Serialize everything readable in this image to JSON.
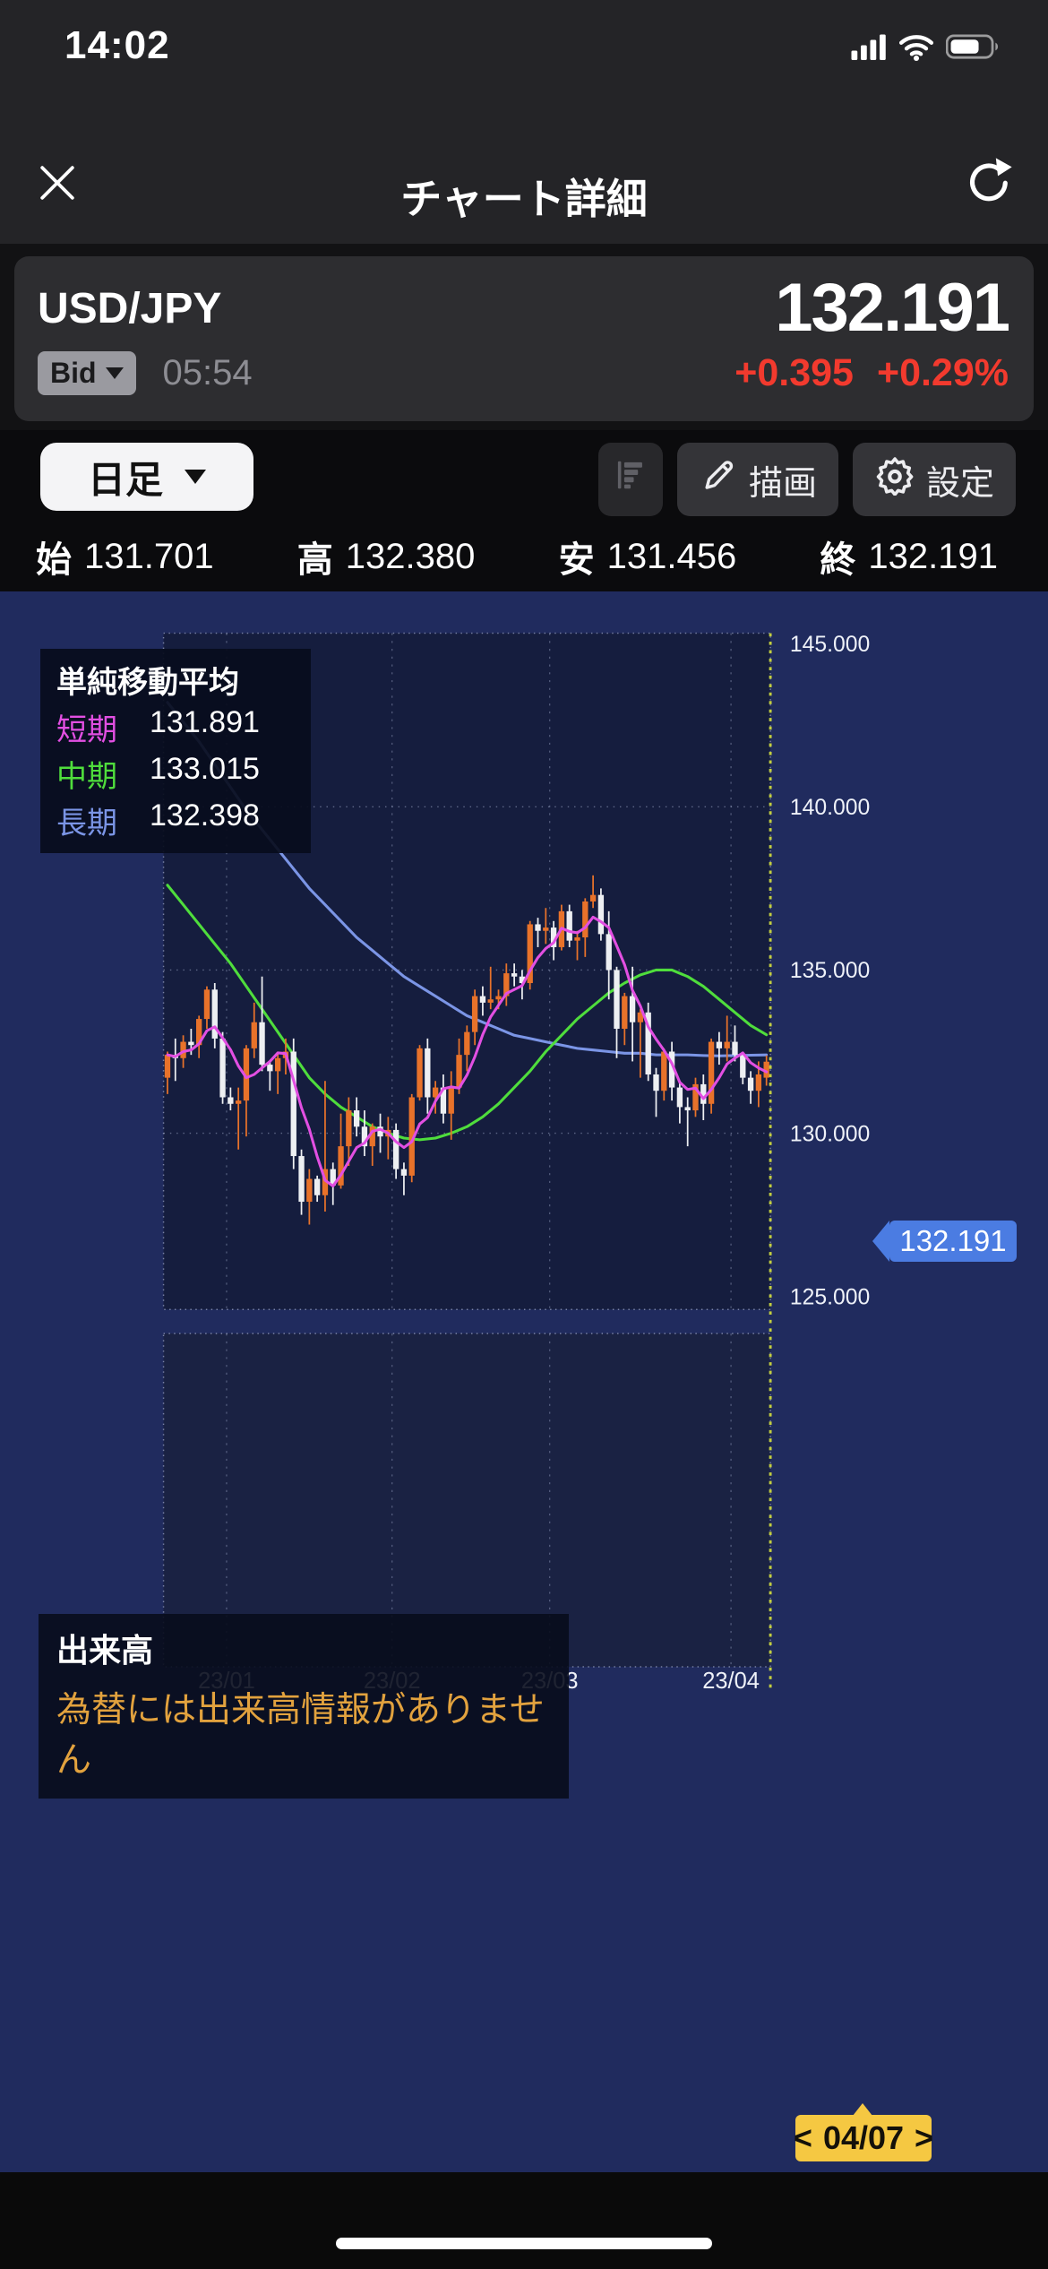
{
  "status_bar": {
    "time": "14:02"
  },
  "nav": {
    "title": "チャート詳細"
  },
  "quote": {
    "pair": "USD/JPY",
    "price": "132.191",
    "side": "Bid",
    "time": "05:54",
    "change": "+0.395",
    "change_pct": "+0.29%",
    "change_color": "#f23a2e"
  },
  "toolbar": {
    "timeframe": "日足",
    "draw_label": "描画",
    "settings_label": "設定"
  },
  "ohlc": {
    "open_label": "始",
    "open": "131.701",
    "high_label": "高",
    "high": "132.380",
    "low_label": "安",
    "low": "131.456",
    "close_label": "終",
    "close": "132.191"
  },
  "sma_legend": {
    "title": "単純移動平均",
    "rows": [
      {
        "label": "短期",
        "value": "131.891",
        "color": "#e24fe2"
      },
      {
        "label": "中期",
        "value": "133.015",
        "color": "#4fdd3c"
      },
      {
        "label": "長期",
        "value": "132.398",
        "color": "#7b95e6"
      }
    ]
  },
  "volume_legend": {
    "title": "出来高",
    "message": "為替には出来高情報がありません",
    "message_color": "#e2a23e"
  },
  "date_badge": {
    "prev": "<",
    "label": "04/07",
    "next": ">"
  },
  "icons": {
    "close": "x-cross",
    "refresh": "circular-arrow",
    "timeframe_caret": "triangle-down",
    "bid_caret": "triangle-down",
    "depth": "bars",
    "draw": "pencil",
    "settings": "gear",
    "signal": "cellular-bars",
    "wifi": "wifi-arcs",
    "battery": "battery-70"
  },
  "chart_data": {
    "type": "candlestick",
    "pair": "USD/JPY",
    "timeframe": "daily",
    "y_axis": {
      "min": 125,
      "max": 145,
      "tick_values": [
        145,
        140,
        135,
        130,
        125
      ],
      "tick_labels": [
        "145.000",
        "140.000",
        "135.000",
        "130.000",
        "125.000"
      ]
    },
    "x_ticks": [
      {
        "label": "23/01",
        "index": 8
      },
      {
        "label": "23/02",
        "index": 29
      },
      {
        "label": "23/03",
        "index": 49
      },
      {
        "label": "23/04",
        "index": 72
      }
    ],
    "current_price": 132.191,
    "current_price_label": "132.191",
    "current_date_label": "04/07",
    "sma_short_period": 5,
    "candles": [
      [
        131.7,
        132.5,
        131.2,
        132.4
      ],
      [
        132.4,
        132.9,
        131.6,
        132.3
      ],
      [
        132.3,
        133.0,
        132.0,
        132.8
      ],
      [
        132.8,
        133.2,
        132.4,
        132.7
      ],
      [
        132.7,
        133.6,
        132.3,
        133.5
      ],
      [
        133.5,
        134.5,
        133.2,
        134.4
      ],
      [
        134.4,
        134.6,
        132.6,
        132.9
      ],
      [
        132.9,
        133.1,
        130.9,
        131.1
      ],
      [
        131.1,
        131.4,
        130.7,
        130.9
      ],
      [
        130.9,
        131.4,
        129.5,
        131.0
      ],
      [
        131.0,
        132.7,
        129.9,
        132.6
      ],
      [
        132.6,
        134.0,
        132.3,
        133.4
      ],
      [
        133.4,
        134.8,
        131.9,
        132.1
      ],
      [
        132.1,
        132.2,
        131.3,
        131.9
      ],
      [
        131.9,
        132.5,
        131.2,
        132.3
      ],
      [
        132.3,
        132.9,
        131.8,
        132.5
      ],
      [
        132.5,
        132.9,
        128.9,
        129.3
      ],
      [
        129.3,
        129.5,
        127.5,
        127.9
      ],
      [
        127.9,
        128.9,
        127.2,
        128.6
      ],
      [
        128.6,
        128.7,
        127.9,
        128.1
      ],
      [
        128.1,
        131.6,
        127.6,
        128.9
      ],
      [
        128.9,
        129.1,
        127.8,
        128.4
      ],
      [
        128.4,
        130.6,
        128.3,
        129.6
      ],
      [
        129.6,
        131.1,
        129.0,
        130.7
      ],
      [
        130.7,
        131.1,
        129.9,
        130.2
      ],
      [
        130.2,
        130.7,
        129.3,
        129.6
      ],
      [
        129.6,
        130.3,
        129.0,
        130.2
      ],
      [
        130.2,
        130.6,
        129.4,
        129.9
      ],
      [
        129.9,
        130.5,
        129.2,
        130.1
      ],
      [
        130.1,
        130.3,
        128.6,
        128.9
      ],
      [
        128.9,
        129.1,
        128.1,
        128.7
      ],
      [
        128.7,
        131.2,
        128.5,
        131.1
      ],
      [
        131.1,
        132.7,
        131.0,
        132.6
      ],
      [
        132.6,
        132.9,
        130.6,
        131.1
      ],
      [
        131.1,
        131.6,
        130.6,
        131.4
      ],
      [
        131.4,
        131.8,
        130.3,
        130.6
      ],
      [
        130.6,
        131.9,
        129.8,
        131.4
      ],
      [
        131.4,
        132.9,
        131.2,
        132.4
      ],
      [
        132.4,
        133.3,
        131.9,
        133.1
      ],
      [
        133.1,
        134.4,
        132.7,
        134.2
      ],
      [
        134.2,
        134.5,
        133.6,
        134.0
      ],
      [
        134.0,
        135.1,
        133.8,
        134.1
      ],
      [
        134.1,
        134.4,
        133.8,
        134.2
      ],
      [
        134.2,
        135.2,
        133.9,
        134.9
      ],
      [
        134.9,
        135.2,
        134.5,
        134.8
      ],
      [
        134.8,
        135.0,
        134.1,
        134.6
      ],
      [
        134.6,
        136.5,
        134.4,
        136.4
      ],
      [
        136.4,
        136.6,
        135.7,
        136.2
      ],
      [
        136.2,
        136.9,
        135.8,
        136.3
      ],
      [
        136.3,
        136.5,
        135.3,
        135.7
      ],
      [
        135.7,
        137.0,
        135.6,
        136.8
      ],
      [
        136.8,
        137.0,
        135.7,
        135.9
      ],
      [
        135.9,
        136.2,
        135.3,
        136.0
      ],
      [
        136.0,
        137.2,
        135.4,
        137.1
      ],
      [
        137.1,
        137.9,
        136.9,
        137.3
      ],
      [
        137.3,
        137.5,
        135.9,
        136.1
      ],
      [
        136.1,
        136.8,
        134.1,
        135.0
      ],
      [
        135.0,
        135.1,
        132.3,
        133.2
      ],
      [
        133.2,
        134.3,
        132.7,
        134.2
      ],
      [
        134.2,
        135.1,
        132.2,
        133.4
      ],
      [
        133.4,
        133.8,
        131.7,
        133.7
      ],
      [
        133.7,
        134.0,
        131.6,
        131.8
      ],
      [
        131.8,
        132.0,
        130.5,
        131.3
      ],
      [
        131.3,
        132.6,
        131.0,
        132.5
      ],
      [
        132.5,
        132.8,
        131.0,
        131.4
      ],
      [
        131.4,
        131.6,
        130.3,
        130.8
      ],
      [
        130.8,
        131.1,
        129.6,
        130.7
      ],
      [
        130.7,
        131.7,
        130.5,
        131.5
      ],
      [
        131.5,
        131.8,
        130.4,
        130.9
      ],
      [
        130.9,
        132.9,
        130.6,
        132.8
      ],
      [
        132.8,
        133.1,
        132.1,
        132.6
      ],
      [
        132.6,
        133.6,
        132.2,
        132.8
      ],
      [
        132.8,
        133.3,
        132.2,
        132.4
      ],
      [
        132.4,
        132.5,
        131.5,
        131.7
      ],
      [
        131.7,
        131.9,
        130.9,
        131.3
      ],
      [
        131.3,
        132.2,
        130.8,
        131.8
      ],
      [
        131.701,
        132.38,
        131.456,
        132.191
      ]
    ],
    "sma_mid_points": [
      [
        0,
        137.6
      ],
      [
        2,
        137.0
      ],
      [
        4,
        136.4
      ],
      [
        6,
        135.8
      ],
      [
        8,
        135.2
      ],
      [
        10,
        134.5
      ],
      [
        12,
        133.8
      ],
      [
        14,
        133.1
      ],
      [
        16,
        132.4
      ],
      [
        18,
        131.7
      ],
      [
        20,
        131.2
      ],
      [
        22,
        130.8
      ],
      [
        24,
        130.5
      ],
      [
        26,
        130.2
      ],
      [
        28,
        130.0
      ],
      [
        30,
        129.85
      ],
      [
        32,
        129.8
      ],
      [
        34,
        129.85
      ],
      [
        36,
        130.0
      ],
      [
        38,
        130.2
      ],
      [
        40,
        130.5
      ],
      [
        42,
        130.9
      ],
      [
        44,
        131.4
      ],
      [
        46,
        131.9
      ],
      [
        48,
        132.5
      ],
      [
        50,
        133.0
      ],
      [
        52,
        133.5
      ],
      [
        54,
        133.9
      ],
      [
        56,
        134.3
      ],
      [
        58,
        134.6
      ],
      [
        60,
        134.85
      ],
      [
        62,
        135.0
      ],
      [
        64,
        135.0
      ],
      [
        66,
        134.8
      ],
      [
        68,
        134.5
      ],
      [
        70,
        134.1
      ],
      [
        72,
        133.7
      ],
      [
        74,
        133.3
      ],
      [
        76,
        133.015
      ]
    ],
    "sma_long_points": [
      [
        0,
        143.2
      ],
      [
        2,
        142.6
      ],
      [
        4,
        142.0
      ],
      [
        6,
        141.3
      ],
      [
        8,
        140.6
      ],
      [
        10,
        139.9
      ],
      [
        12,
        139.3
      ],
      [
        14,
        138.7
      ],
      [
        16,
        138.1
      ],
      [
        18,
        137.5
      ],
      [
        20,
        137.0
      ],
      [
        22,
        136.5
      ],
      [
        24,
        136.0
      ],
      [
        26,
        135.6
      ],
      [
        28,
        135.2
      ],
      [
        30,
        134.8
      ],
      [
        32,
        134.5
      ],
      [
        34,
        134.2
      ],
      [
        36,
        133.9
      ],
      [
        38,
        133.6
      ],
      [
        40,
        133.4
      ],
      [
        42,
        133.2
      ],
      [
        44,
        133.0
      ],
      [
        46,
        132.9
      ],
      [
        48,
        132.8
      ],
      [
        50,
        132.7
      ],
      [
        52,
        132.6
      ],
      [
        54,
        132.55
      ],
      [
        56,
        132.5
      ],
      [
        58,
        132.45
      ],
      [
        60,
        132.45
      ],
      [
        62,
        132.4
      ],
      [
        64,
        132.4
      ],
      [
        66,
        132.4
      ],
      [
        68,
        132.38
      ],
      [
        70,
        132.37
      ],
      [
        72,
        132.38
      ],
      [
        74,
        132.39
      ],
      [
        76,
        132.398
      ]
    ],
    "colors": {
      "up": "#e8722a",
      "down": "#edeff2",
      "sma_short": "#e24fe2",
      "sma_mid": "#4fdd3c",
      "sma_long": "#7b95e6",
      "grid": "#9aa4c4",
      "border": "#aab2cf",
      "cursor": "#c3ce3f",
      "pane_bg": "#151d3e",
      "vol_pane_bg": "#1a2243",
      "outer_bg": "#202b5e",
      "axis_text": "#eef1f8",
      "tag_bg": "#4b7ce2",
      "badge_bg": "#f5c842"
    },
    "legend_position": "top-left",
    "grid": true
  }
}
